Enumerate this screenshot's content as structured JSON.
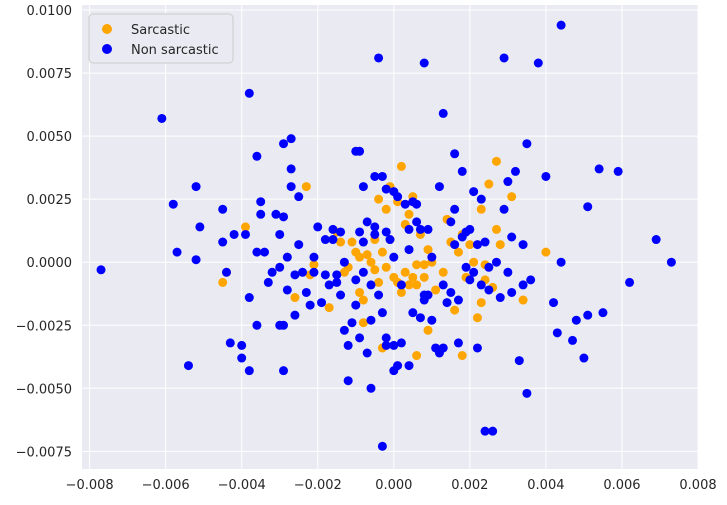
{
  "chart_data": {
    "type": "scatter",
    "title": "",
    "xlabel": "",
    "ylabel": "",
    "xlim": [
      -0.0082,
      0.008
    ],
    "ylim": [
      -0.0082,
      0.0102
    ],
    "xticks": [
      -0.008,
      -0.006,
      -0.004,
      -0.002,
      0.0,
      0.002,
      0.004,
      0.006,
      0.008
    ],
    "xtick_labels": [
      "−0.008",
      "−0.006",
      "−0.004",
      "−0.002",
      "0.000",
      "0.002",
      "0.004",
      "0.006",
      "0.008"
    ],
    "yticks": [
      -0.0075,
      -0.005,
      -0.0025,
      0.0,
      0.0025,
      0.005,
      0.0075,
      0.01
    ],
    "ytick_labels": [
      "−0.0075",
      "−0.0050",
      "−0.0025",
      "0.0000",
      "0.0025",
      "0.0050",
      "0.0075",
      "0.0100"
    ],
    "grid": true,
    "legend_position": "top-left",
    "background": "#eaeaf2",
    "series": [
      {
        "name": "Sarcastic",
        "color": "#ffa500",
        "points": [
          [
            -0.0045,
            -0.0008
          ],
          [
            -0.0044,
            -0.0004
          ],
          [
            -0.0039,
            0.0014
          ],
          [
            -0.0023,
            0.003
          ],
          [
            -0.0022,
            -0.0005
          ],
          [
            -0.0021,
            -0.0001
          ],
          [
            -0.0026,
            -0.0014
          ],
          [
            -0.0017,
            -0.0018
          ],
          [
            -0.0015,
            0.0012
          ],
          [
            -0.0014,
            0.0008
          ],
          [
            -0.0013,
            -0.0004
          ],
          [
            -0.0012,
            -0.0002
          ],
          [
            -0.0011,
            0.0008
          ],
          [
            -0.001,
            0.0004
          ],
          [
            -0.0009,
            0.0002
          ],
          [
            -0.0009,
            -0.0012
          ],
          [
            -0.0008,
            -0.0015
          ],
          [
            -0.0008,
            -0.0024
          ],
          [
            -0.0007,
            0.0003
          ],
          [
            -0.0006,
            0.0
          ],
          [
            -0.0005,
            -0.0003
          ],
          [
            -0.0005,
            0.0009
          ],
          [
            -0.0004,
            0.0025
          ],
          [
            -0.0004,
            -0.0008
          ],
          [
            -0.0003,
            0.0004
          ],
          [
            -0.0002,
            0.0021
          ],
          [
            -0.0002,
            -0.0002
          ],
          [
            -0.0001,
            0.0009
          ],
          [
            -0.0001,
            0.003
          ],
          [
            0.0,
            -0.0006
          ],
          [
            0.0001,
            -0.0008
          ],
          [
            0.0001,
            0.0024
          ],
          [
            0.0002,
            0.0038
          ],
          [
            0.0002,
            -0.0012
          ],
          [
            0.0003,
            0.0015
          ],
          [
            0.0003,
            -0.0004
          ],
          [
            0.0004,
            0.0019
          ],
          [
            0.0004,
            -0.0009
          ],
          [
            0.0005,
            0.0026
          ],
          [
            0.0005,
            -0.0006
          ],
          [
            0.0006,
            -0.0001
          ],
          [
            0.0006,
            -0.0009
          ],
          [
            0.0007,
            0.0011
          ],
          [
            0.0008,
            -0.0001
          ],
          [
            0.0008,
            -0.0006
          ],
          [
            0.0009,
            0.0005
          ],
          [
            0.0009,
            -0.0027
          ],
          [
            0.001,
            0.0
          ],
          [
            0.0011,
            -0.0011
          ],
          [
            0.0013,
            -0.0004
          ],
          [
            0.0014,
            0.0017
          ],
          [
            0.0015,
            0.0008
          ],
          [
            0.0016,
            -0.0019
          ],
          [
            0.0017,
            0.0004
          ],
          [
            0.0018,
            0.0011
          ],
          [
            0.0018,
            -0.0037
          ],
          [
            0.0019,
            -0.0006
          ],
          [
            0.002,
            0.0007
          ],
          [
            0.0021,
            0.0
          ],
          [
            0.0022,
            -0.0022
          ],
          [
            0.0023,
            -0.0016
          ],
          [
            0.0023,
            0.0021
          ],
          [
            0.0024,
            -0.0007
          ],
          [
            0.0024,
            -0.0001
          ],
          [
            0.0025,
            0.0031
          ],
          [
            0.0026,
            -0.001
          ],
          [
            0.0027,
            0.0013
          ],
          [
            0.0027,
            0.004
          ],
          [
            0.0028,
            0.0007
          ],
          [
            0.0031,
            0.0026
          ],
          [
            0.0034,
            -0.0015
          ],
          [
            0.004,
            0.0004
          ],
          [
            0.0006,
            -0.0037
          ],
          [
            -0.0003,
            -0.0034
          ]
        ]
      },
      {
        "name": "Non sarcastic",
        "color": "#0000ff",
        "points": [
          [
            -0.0077,
            -0.0003
          ],
          [
            -0.0061,
            0.0057
          ],
          [
            -0.0058,
            0.0023
          ],
          [
            -0.0057,
            0.0004
          ],
          [
            -0.0054,
            -0.0041
          ],
          [
            -0.0052,
            0.0001
          ],
          [
            -0.0052,
            0.003
          ],
          [
            -0.0051,
            0.0014
          ],
          [
            -0.0045,
            0.0021
          ],
          [
            -0.0045,
            0.0008
          ],
          [
            -0.0044,
            -0.0004
          ],
          [
            -0.0043,
            -0.0032
          ],
          [
            -0.0042,
            0.0011
          ],
          [
            -0.004,
            -0.0033
          ],
          [
            -0.004,
            -0.0038
          ],
          [
            -0.0039,
            0.0011
          ],
          [
            -0.0038,
            0.0067
          ],
          [
            -0.0038,
            -0.0014
          ],
          [
            -0.0038,
            -0.0043
          ],
          [
            -0.0036,
            0.0042
          ],
          [
            -0.0036,
            -0.0025
          ],
          [
            -0.0036,
            0.0004
          ],
          [
            -0.0035,
            0.0024
          ],
          [
            -0.0035,
            0.0019
          ],
          [
            -0.0034,
            0.0004
          ],
          [
            -0.0033,
            -0.0008
          ],
          [
            -0.0032,
            -0.0004
          ],
          [
            -0.0031,
            0.0019
          ],
          [
            -0.003,
            0.0011
          ],
          [
            -0.003,
            -0.0002
          ],
          [
            -0.003,
            -0.0025
          ],
          [
            -0.0029,
            -0.0025
          ],
          [
            -0.0029,
            0.0047
          ],
          [
            -0.0029,
            0.0018
          ],
          [
            -0.0029,
            -0.0043
          ],
          [
            -0.0028,
            -0.0011
          ],
          [
            -0.0028,
            0.0002
          ],
          [
            -0.0027,
            0.0049
          ],
          [
            -0.0027,
            0.0037
          ],
          [
            -0.0027,
            0.003
          ],
          [
            -0.0026,
            -0.0005
          ],
          [
            -0.0026,
            -0.0021
          ],
          [
            -0.0025,
            0.0026
          ],
          [
            -0.0025,
            0.0007
          ],
          [
            -0.0024,
            -0.0004
          ],
          [
            -0.0023,
            -0.0012
          ],
          [
            -0.0022,
            -0.0017
          ],
          [
            -0.0021,
            -0.0004
          ],
          [
            -0.0021,
            0.0002
          ],
          [
            -0.002,
            0.0014
          ],
          [
            -0.0019,
            -0.0016
          ],
          [
            -0.0018,
            0.0009
          ],
          [
            -0.0018,
            -0.0005
          ],
          [
            -0.0017,
            -0.0009
          ],
          [
            -0.0016,
            0.0013
          ],
          [
            -0.0015,
            -0.0008
          ],
          [
            -0.0015,
            -0.0005
          ],
          [
            -0.0014,
            0.0012
          ],
          [
            -0.0014,
            -0.0013
          ],
          [
            -0.0013,
            0.0
          ],
          [
            -0.0013,
            -0.0027
          ],
          [
            -0.0012,
            -0.0033
          ],
          [
            -0.0012,
            -0.0047
          ],
          [
            -0.0011,
            -0.0024
          ],
          [
            -0.001,
            0.0044
          ],
          [
            -0.001,
            -0.0017
          ],
          [
            -0.001,
            -0.0007
          ],
          [
            -0.0009,
            0.0044
          ],
          [
            -0.0009,
            0.0012
          ],
          [
            -0.0009,
            -0.003
          ],
          [
            -0.0008,
            0.003
          ],
          [
            -0.0008,
            0.0008
          ],
          [
            -0.0008,
            -0.0004
          ],
          [
            -0.0007,
            0.0016
          ],
          [
            -0.0007,
            -0.0036
          ],
          [
            -0.0006,
            -0.0023
          ],
          [
            -0.0006,
            -0.0009
          ],
          [
            -0.0006,
            -0.005
          ],
          [
            -0.0005,
            0.0034
          ],
          [
            -0.0005,
            0.0011
          ],
          [
            -0.0004,
            0.0081
          ],
          [
            -0.0004,
            -0.0013
          ],
          [
            -0.0003,
            0.0034
          ],
          [
            -0.0003,
            -0.002
          ],
          [
            -0.0003,
            -0.0073
          ],
          [
            -0.0002,
            0.0029
          ],
          [
            -0.0002,
            0.0012
          ],
          [
            -0.0002,
            -0.003
          ],
          [
            -0.0002,
            -0.0033
          ],
          [
            -0.0001,
            0.0009
          ],
          [
            0.0,
            0.0002
          ],
          [
            0.0,
            0.0028
          ],
          [
            0.0,
            -0.0033
          ],
          [
            0.0,
            -0.0043
          ],
          [
            0.0001,
            -0.0041
          ],
          [
            0.0001,
            0.0026
          ],
          [
            0.0002,
            -0.0032
          ],
          [
            0.0002,
            -0.0009
          ],
          [
            0.0003,
            0.0023
          ],
          [
            0.0004,
            0.0005
          ],
          [
            0.0004,
            0.0013
          ],
          [
            0.0005,
            -0.002
          ],
          [
            0.0005,
            0.0024
          ],
          [
            0.0006,
            0.0016
          ],
          [
            0.0007,
            -0.0022
          ],
          [
            0.0007,
            0.0013
          ],
          [
            0.0008,
            0.0079
          ],
          [
            0.0008,
            -0.0013
          ],
          [
            0.0008,
            -0.0015
          ],
          [
            0.0009,
            0.0013
          ],
          [
            0.0009,
            -0.0013
          ],
          [
            0.001,
            -0.0023
          ],
          [
            0.001,
            0.0002
          ],
          [
            0.0011,
            -0.0034
          ],
          [
            0.0012,
            0.003
          ],
          [
            0.0012,
            -0.0036
          ],
          [
            0.0013,
            0.0059
          ],
          [
            0.0013,
            -0.0034
          ],
          [
            0.0013,
            -0.0009
          ],
          [
            0.0014,
            -0.0016
          ],
          [
            0.0015,
            0.0016
          ],
          [
            0.0015,
            -0.0012
          ],
          [
            0.0016,
            0.0043
          ],
          [
            0.0016,
            0.0007
          ],
          [
            0.0016,
            0.0021
          ],
          [
            0.0017,
            -0.0032
          ],
          [
            0.0017,
            -0.0015
          ],
          [
            0.0018,
            0.001
          ],
          [
            0.0018,
            0.0036
          ],
          [
            0.0019,
            0.0012
          ],
          [
            0.0019,
            -0.0002
          ],
          [
            0.002,
            0.0013
          ],
          [
            0.002,
            -0.0007
          ],
          [
            0.0021,
            0.0028
          ],
          [
            0.0021,
            -0.0004
          ],
          [
            0.0022,
            0.0007
          ],
          [
            0.0022,
            -0.0034
          ],
          [
            0.0023,
            0.0025
          ],
          [
            0.0023,
            -0.0009
          ],
          [
            0.0024,
            -0.0067
          ],
          [
            0.0024,
            0.0008
          ],
          [
            0.0025,
            -0.0002
          ],
          [
            0.0025,
            -0.0011
          ],
          [
            0.0026,
            -0.0067
          ],
          [
            0.0027,
            0.0
          ],
          [
            0.0028,
            -0.0014
          ],
          [
            0.0029,
            0.0021
          ],
          [
            0.0029,
            0.0081
          ],
          [
            0.003,
            0.0032
          ],
          [
            0.003,
            -0.0004
          ],
          [
            0.0031,
            0.001
          ],
          [
            0.0031,
            -0.0012
          ],
          [
            0.0032,
            0.0036
          ],
          [
            0.0033,
            -0.0039
          ],
          [
            0.0034,
            0.0007
          ],
          [
            0.0034,
            -0.0009
          ],
          [
            0.0035,
            0.0047
          ],
          [
            0.0035,
            -0.0052
          ],
          [
            0.0036,
            -0.0007
          ],
          [
            0.0038,
            0.0079
          ],
          [
            0.004,
            0.0034
          ],
          [
            0.0042,
            -0.0016
          ],
          [
            0.0043,
            -0.0028
          ],
          [
            0.0044,
            0.0094
          ],
          [
            0.0044,
            0.0
          ],
          [
            0.0047,
            -0.0031
          ],
          [
            0.0048,
            -0.0023
          ],
          [
            0.005,
            -0.0038
          ],
          [
            0.0051,
            -0.0021
          ],
          [
            0.0051,
            0.0022
          ],
          [
            0.0054,
            0.0037
          ],
          [
            0.0055,
            -0.002
          ],
          [
            0.0059,
            0.0036
          ],
          [
            0.0062,
            -0.0008
          ],
          [
            0.0069,
            0.0009
          ],
          [
            0.0073,
            0.0
          ],
          [
            0.0006,
            0.0023
          ],
          [
            -0.0016,
            0.0009
          ],
          [
            0.0004,
            -0.0041
          ],
          [
            -0.0005,
            0.0014
          ]
        ]
      }
    ]
  }
}
